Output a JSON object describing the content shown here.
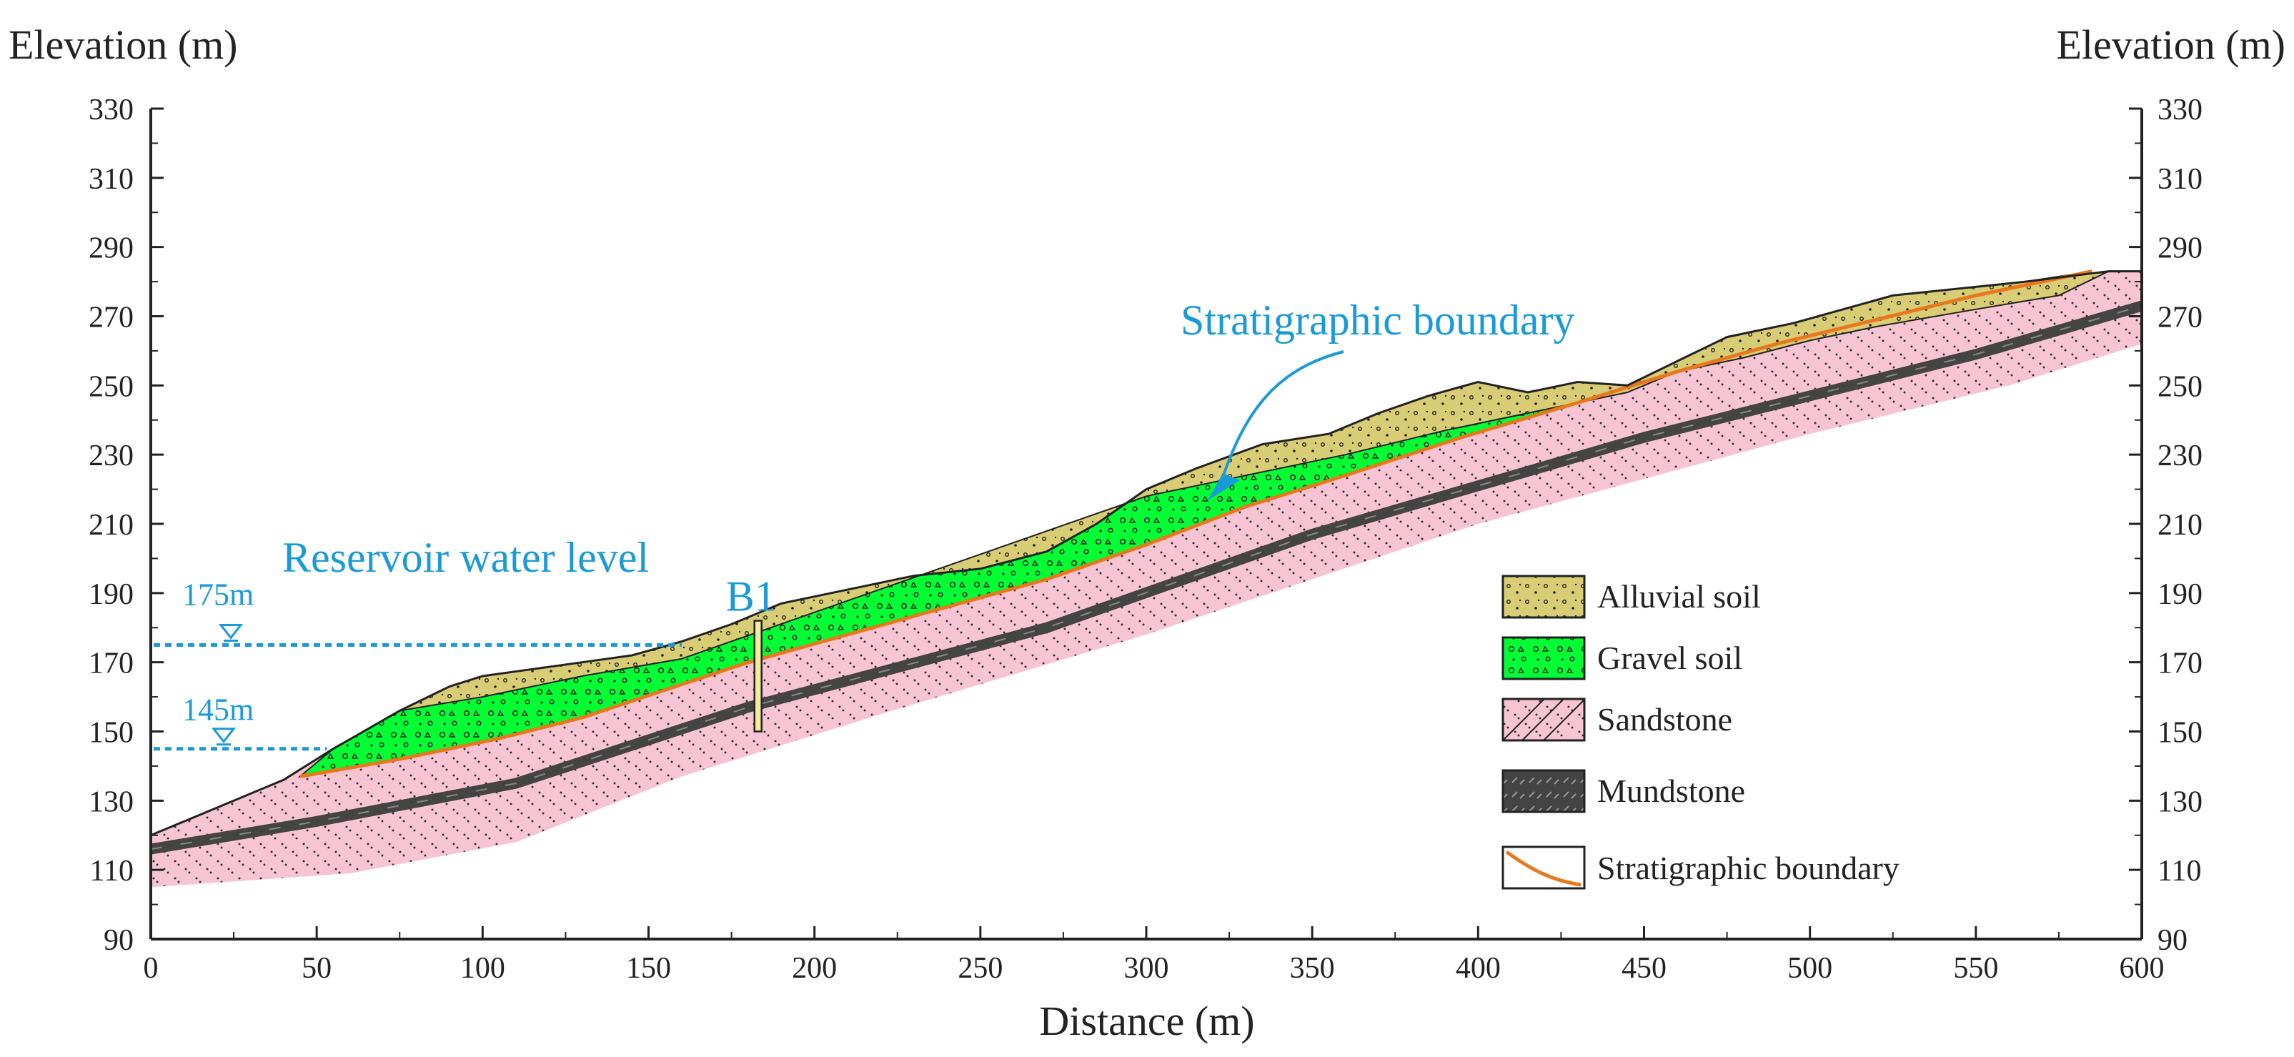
{
  "chart_data": {
    "type": "geological-cross-section",
    "title": "",
    "xlabel": "Distance (m)",
    "ylabel_left": "Elevation (m)",
    "ylabel_right": "Elevation (m)",
    "xlim": [
      0,
      600
    ],
    "ylim": [
      90,
      330
    ],
    "x_ticks": [
      "0",
      "50",
      "100",
      "150",
      "200",
      "250",
      "300",
      "350",
      "400",
      "450",
      "500",
      "550",
      "600"
    ],
    "y_ticks": [
      "90",
      "110",
      "130",
      "150",
      "170",
      "190",
      "210",
      "230",
      "250",
      "270",
      "290",
      "310",
      "330"
    ],
    "ground_surface": [
      [
        0,
        120
      ],
      [
        40,
        136
      ],
      [
        55,
        145
      ],
      [
        75,
        156
      ],
      [
        90,
        163
      ],
      [
        100,
        166
      ],
      [
        115,
        168
      ],
      [
        130,
        170
      ],
      [
        145,
        172
      ],
      [
        160,
        176
      ],
      [
        175,
        181
      ],
      [
        190,
        187
      ],
      [
        200,
        189
      ],
      [
        215,
        192
      ],
      [
        230,
        195
      ],
      [
        250,
        197
      ],
      [
        270,
        202
      ],
      [
        285,
        210
      ],
      [
        300,
        220
      ],
      [
        315,
        226
      ],
      [
        335,
        233
      ],
      [
        355,
        236
      ],
      [
        370,
        242
      ],
      [
        385,
        247
      ],
      [
        400,
        251
      ],
      [
        415,
        248
      ],
      [
        430,
        251
      ],
      [
        445,
        250
      ],
      [
        460,
        257
      ],
      [
        475,
        264
      ],
      [
        495,
        268
      ],
      [
        510,
        272
      ],
      [
        525,
        276
      ],
      [
        545,
        278
      ],
      [
        565,
        280
      ],
      [
        590,
        283
      ],
      [
        600,
        283
      ]
    ],
    "soil_base": [
      [
        45,
        137
      ],
      [
        75,
        142
      ],
      [
        105,
        148
      ],
      [
        130,
        154
      ],
      [
        155,
        162
      ],
      [
        180,
        170
      ],
      [
        210,
        178
      ],
      [
        240,
        186
      ],
      [
        270,
        194
      ],
      [
        300,
        204
      ],
      [
        330,
        215
      ],
      [
        360,
        224
      ],
      [
        395,
        235
      ],
      [
        430,
        245
      ],
      [
        460,
        254
      ],
      [
        490,
        262
      ],
      [
        520,
        269
      ],
      [
        550,
        276
      ],
      [
        585,
        283
      ]
    ],
    "alluvial_base": [
      [
        75,
        156
      ],
      [
        100,
        160
      ],
      [
        130,
        166
      ],
      [
        160,
        171
      ],
      [
        300,
        218
      ],
      [
        330,
        224
      ],
      [
        360,
        230
      ],
      [
        390,
        237
      ],
      [
        420,
        243
      ],
      [
        445,
        248
      ],
      [
        460,
        254
      ],
      [
        480,
        258
      ],
      [
        500,
        263
      ],
      [
        520,
        267
      ],
      [
        550,
        272
      ],
      [
        575,
        276
      ],
      [
        590,
        283
      ]
    ],
    "mudstone_line": [
      [
        0,
        116
      ],
      [
        50,
        124
      ],
      [
        110,
        135
      ],
      [
        180,
        157
      ],
      [
        270,
        180
      ],
      [
        350,
        207
      ],
      [
        450,
        235
      ],
      [
        550,
        259
      ],
      [
        600,
        273
      ]
    ],
    "sandstone_bottom": [
      [
        0,
        105
      ],
      [
        60,
        109
      ],
      [
        110,
        118
      ],
      [
        160,
        137
      ],
      [
        220,
        155
      ],
      [
        300,
        178
      ],
      [
        400,
        210
      ],
      [
        500,
        236
      ],
      [
        560,
        250
      ],
      [
        600,
        262
      ]
    ],
    "borehole": {
      "label": "B1",
      "x": 183,
      "top": 182,
      "bottom": 150
    },
    "water_levels": [
      {
        "label": "175m",
        "elevation": 175,
        "x_end": 160
      },
      {
        "label": "145m",
        "elevation": 145,
        "x_end": 53
      }
    ],
    "annotations": [
      {
        "text": "Reservoir water level"
      },
      {
        "text": "Stratigraphic  boundary"
      }
    ],
    "legend": [
      {
        "key": "alluvial",
        "label": "Alluvial  soil"
      },
      {
        "key": "gravel",
        "label": "Gravel  soil"
      },
      {
        "key": "sandstone",
        "label": "Sandstone"
      },
      {
        "key": "mudstone",
        "label": "Mundstone"
      },
      {
        "key": "boundary",
        "label": "Stratigraphic boundary"
      }
    ],
    "colors": {
      "alluvial": "#d8cc74",
      "gravel": "#00ff33",
      "sandstone": "#f7c4d3",
      "mudstone": "#444444",
      "boundary": "#e8781e",
      "water": "#1a9ad6"
    }
  }
}
